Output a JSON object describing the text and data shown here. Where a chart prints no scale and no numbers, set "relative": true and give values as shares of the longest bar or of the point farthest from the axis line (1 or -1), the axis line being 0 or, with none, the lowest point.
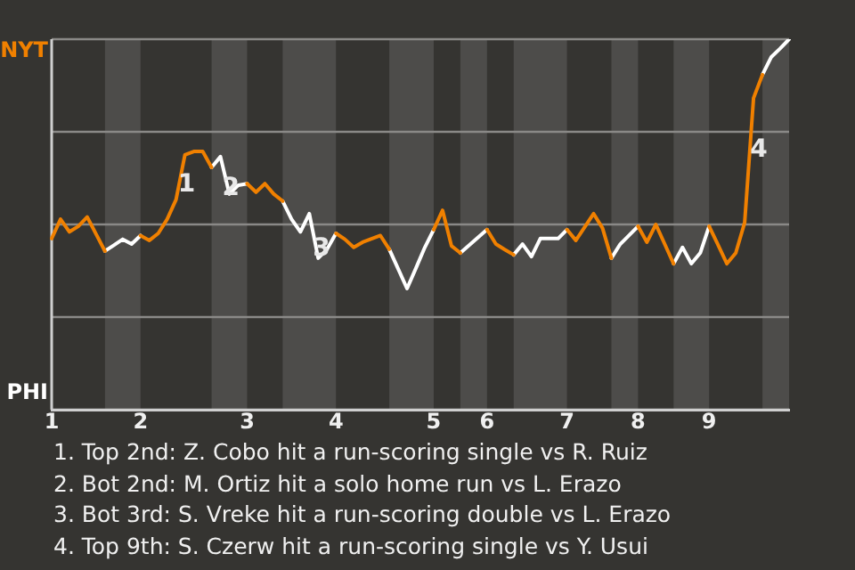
{
  "chart_data": {
    "type": "line",
    "relative": true,
    "categories": [
      "1",
      null,
      null,
      null,
      null,
      null,
      null,
      null,
      null,
      null,
      "2",
      null,
      null,
      null,
      null,
      null,
      null,
      null,
      null,
      null,
      null,
      null,
      "3",
      null,
      null,
      null,
      null,
      null,
      null,
      null,
      null,
      null,
      "4",
      null,
      null,
      null,
      null,
      null,
      null,
      null,
      null,
      null,
      null,
      "5",
      null,
      null,
      null,
      null,
      null,
      "6",
      null,
      null,
      null,
      null,
      null,
      null,
      null,
      null,
      "7",
      null,
      null,
      null,
      null,
      null,
      null,
      null,
      "8",
      null,
      null,
      null,
      null,
      null,
      null,
      null,
      "9",
      null,
      null,
      null,
      null,
      null,
      null,
      null,
      null,
      null
    ],
    "series": [
      {
        "color": "#f08000",
        "values": [
          0.462,
          0.514,
          0.48,
          0.495,
          0.52,
          0.474,
          0.428,
          null,
          null,
          null,
          0.47,
          0.457,
          0.476,
          0.514,
          0.567,
          0.688,
          0.697,
          0.697,
          0.654,
          null,
          null,
          null,
          0.61,
          0.587,
          0.61,
          0.582,
          0.563,
          null,
          null,
          null,
          null,
          null,
          0.476,
          0.46,
          0.438,
          0.452,
          0.461,
          0.47,
          0.433,
          null,
          null,
          null,
          null,
          0.486,
          0.538,
          0.442,
          0.423,
          null,
          null,
          0.486,
          0.447,
          0.432,
          0.418,
          null,
          null,
          null,
          null,
          null,
          0.486,
          0.457,
          0.493,
          0.529,
          0.49,
          0.409,
          null,
          null,
          0.495,
          0.452,
          0.5,
          0.447,
          0.394,
          null,
          null,
          null,
          0.495,
          0.445,
          0.394,
          0.423,
          0.505,
          0.841,
          0.904,
          null,
          null,
          null
        ]
      },
      {
        "color": "#ffffff",
        "values": [
          null,
          null,
          null,
          null,
          null,
          null,
          0.428,
          0.444,
          0.46,
          0.447,
          0.47,
          null,
          null,
          null,
          null,
          null,
          null,
          null,
          0.654,
          0.683,
          0.582,
          0.606,
          0.61,
          null,
          null,
          null,
          0.563,
          0.514,
          0.48,
          0.529,
          0.409,
          0.433,
          0.476,
          null,
          null,
          null,
          null,
          null,
          0.433,
          0.38,
          0.327,
          0.382,
          0.438,
          0.486,
          null,
          null,
          0.423,
          0.444,
          0.465,
          0.486,
          null,
          null,
          0.418,
          0.447,
          0.413,
          0.462,
          0.462,
          0.462,
          0.486,
          null,
          null,
          null,
          null,
          0.409,
          0.447,
          0.471,
          0.495,
          null,
          null,
          null,
          0.394,
          0.438,
          0.394,
          0.423,
          0.495,
          null,
          null,
          null,
          null,
          null,
          0.904,
          0.952,
          0.975,
          1
        ]
      }
    ],
    "ref_lines": [
      {
        "axis": "y",
        "value": 1,
        "label": "NYT",
        "color": "#8a8987"
      },
      {
        "axis": "y",
        "value": 0.75,
        "color": "#8a8987"
      },
      {
        "axis": "y",
        "value": 0.5,
        "color": "#8a8987"
      },
      {
        "axis": "y",
        "value": 0.25,
        "color": "#8a8987"
      },
      {
        "axis": "y",
        "value": 0,
        "label": "PHI",
        "color": "#cfcfcf"
      }
    ],
    "legend": false,
    "marker": "none",
    "line_style": "solid",
    "annotations": [
      {
        "text": "1",
        "y": 0.606
      },
      {
        "text": "2",
        "y": 0.596
      },
      {
        "text": "3",
        "y": 0.433
      },
      {
        "text": "4",
        "y": 0.7
      },
      "1. Top 2nd: Z. Cobo hit a run-scoring single vs R. Ruiz",
      "2. Bot 2nd: M. Ortiz hit a solo home run vs L. Erazo",
      "3. Bot 3rd: S. Vreke hit a run-scoring double vs L. Erazo",
      "4. Top 9th: S. Czerw hit a run-scoring single vs Y. Usui"
    ]
  }
}
